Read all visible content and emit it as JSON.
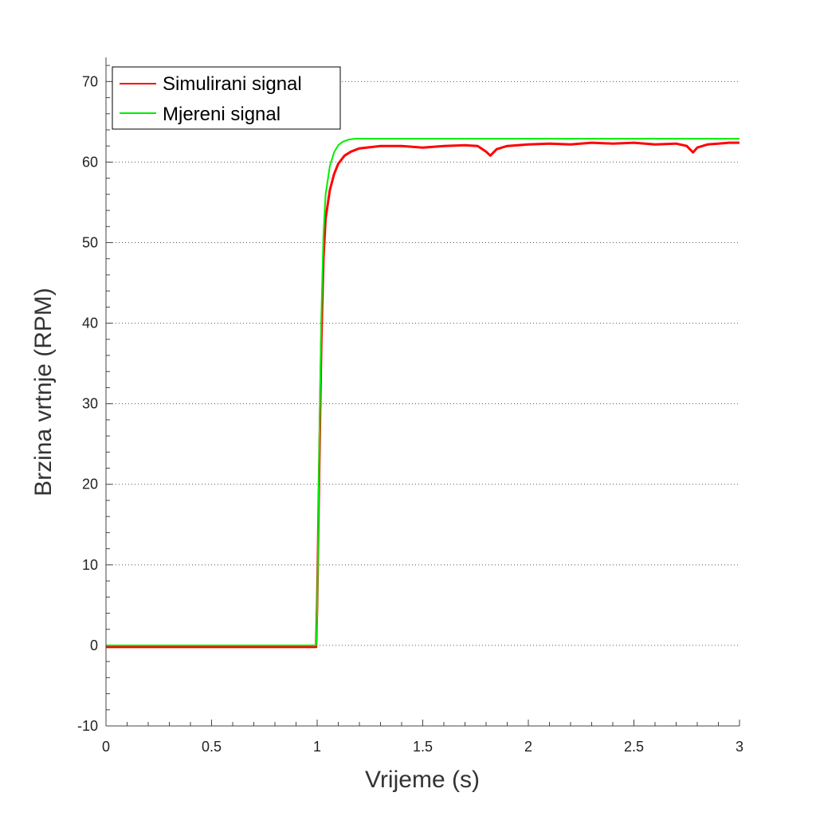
{
  "chart_data": {
    "type": "line",
    "title": "",
    "xlabel": "Vrijeme (s)",
    "ylabel": "Brzina vrtnje (RPM)",
    "xlim": [
      0,
      3
    ],
    "ylim": [
      -10,
      73
    ],
    "x_ticks": [
      "0",
      "0.5",
      "1",
      "1.5",
      "2",
      "2.5",
      "3"
    ],
    "x_tick_values": [
      0,
      0.5,
      1,
      1.5,
      2,
      2.5,
      3
    ],
    "y_ticks": [
      "-10",
      "0",
      "10",
      "20",
      "30",
      "40",
      "50",
      "60",
      "70"
    ],
    "y_tick_values": [
      -10,
      0,
      10,
      20,
      30,
      40,
      50,
      60,
      70
    ],
    "grid": "horizontal dotted",
    "legend_position": "top-left",
    "series": [
      {
        "name": "Simulirani signal",
        "color": "#ff0000",
        "x": [
          0,
          0.5,
          0.995,
          1.0,
          1.01,
          1.02,
          1.03,
          1.04,
          1.06,
          1.08,
          1.1,
          1.13,
          1.16,
          1.2,
          1.3,
          1.4,
          1.5,
          1.6,
          1.7,
          1.76,
          1.8,
          1.82,
          1.85,
          1.9,
          2.0,
          2.1,
          2.2,
          2.3,
          2.4,
          2.5,
          2.6,
          2.7,
          2.75,
          2.78,
          2.8,
          2.85,
          2.9,
          2.95,
          3.0
        ],
        "y": [
          -0.2,
          -0.2,
          -0.2,
          5,
          22,
          38,
          48,
          53,
          56.5,
          58.5,
          59.8,
          60.8,
          61.3,
          61.7,
          62.0,
          62.0,
          61.8,
          62.0,
          62.1,
          62.0,
          61.3,
          60.8,
          61.6,
          62.0,
          62.2,
          62.3,
          62.2,
          62.4,
          62.3,
          62.4,
          62.2,
          62.3,
          62.0,
          61.2,
          61.8,
          62.2,
          62.3,
          62.4,
          62.4
        ]
      },
      {
        "name": "Mjereni signal",
        "color": "#00ee00",
        "x": [
          0,
          0.5,
          0.995,
          1.0,
          1.01,
          1.02,
          1.03,
          1.04,
          1.06,
          1.08,
          1.1,
          1.12,
          1.15,
          1.18,
          1.22,
          1.3,
          1.5,
          2.0,
          2.5,
          3.0
        ],
        "y": [
          0,
          0,
          0,
          4,
          24,
          41,
          51,
          56,
          59.5,
          61.2,
          62.1,
          62.5,
          62.8,
          62.9,
          62.9,
          62.9,
          62.9,
          62.9,
          62.9,
          62.9
        ]
      }
    ]
  }
}
